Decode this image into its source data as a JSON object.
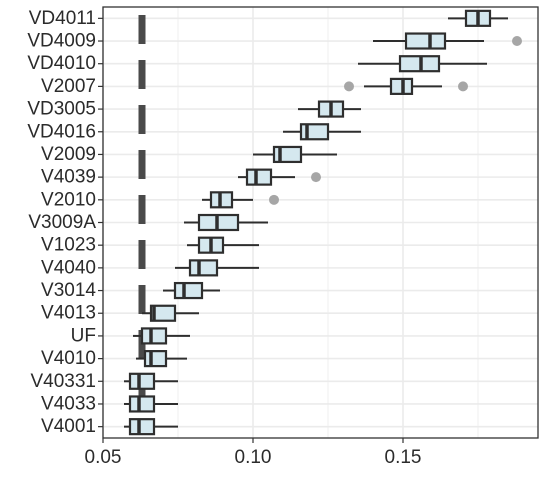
{
  "chart_data": {
    "type": "boxplot",
    "orientation": "horizontal",
    "title": "",
    "xlabel": "",
    "ylabel": "",
    "xlim": [
      0.05,
      0.195
    ],
    "x_ticks": [
      0.05,
      0.1,
      0.15
    ],
    "x_tick_labels": [
      "0.05",
      "0.10",
      "0.15"
    ],
    "grid": true,
    "reference_line": {
      "x": 0.063,
      "style": "dashed"
    },
    "colors": {
      "box_fill": "#d5e8ef",
      "box_stroke": "#2e2e2e",
      "outlier": "#a6a6a6",
      "grid": "#ebebeb",
      "reference_line": "#4a4a4a"
    },
    "categories": [
      "VD4011",
      "VD4009",
      "VD4010",
      "V2007",
      "VD3005",
      "VD4016",
      "V2009",
      "V4039",
      "V2010",
      "V3009A",
      "V1023",
      "V4040",
      "V3014",
      "V4013",
      "UF",
      "V4010",
      "V40331",
      "V4033",
      "V4001"
    ],
    "boxes": [
      {
        "category": "VD4011",
        "min": 0.165,
        "q1": 0.171,
        "median": 0.175,
        "q3": 0.179,
        "max": 0.185,
        "outliers": []
      },
      {
        "category": "VD4009",
        "min": 0.14,
        "q1": 0.151,
        "median": 0.159,
        "q3": 0.164,
        "max": 0.177,
        "outliers": [
          0.188
        ]
      },
      {
        "category": "VD4010",
        "min": 0.135,
        "q1": 0.149,
        "median": 0.156,
        "q3": 0.162,
        "max": 0.178,
        "outliers": []
      },
      {
        "category": "V2007",
        "min": 0.137,
        "q1": 0.146,
        "median": 0.15,
        "q3": 0.153,
        "max": 0.163,
        "outliers": [
          0.132,
          0.17
        ]
      },
      {
        "category": "VD3005",
        "min": 0.115,
        "q1": 0.122,
        "median": 0.126,
        "q3": 0.13,
        "max": 0.136,
        "outliers": []
      },
      {
        "category": "VD4016",
        "min": 0.11,
        "q1": 0.116,
        "median": 0.118,
        "q3": 0.125,
        "max": 0.136,
        "outliers": []
      },
      {
        "category": "V2009",
        "min": 0.1,
        "q1": 0.107,
        "median": 0.109,
        "q3": 0.116,
        "max": 0.128,
        "outliers": []
      },
      {
        "category": "V4039",
        "min": 0.095,
        "q1": 0.098,
        "median": 0.101,
        "q3": 0.106,
        "max": 0.114,
        "outliers": [
          0.121
        ]
      },
      {
        "category": "V2010",
        "min": 0.083,
        "q1": 0.086,
        "median": 0.089,
        "q3": 0.093,
        "max": 0.1,
        "outliers": [
          0.107
        ]
      },
      {
        "category": "V3009A",
        "min": 0.077,
        "q1": 0.082,
        "median": 0.088,
        "q3": 0.095,
        "max": 0.105,
        "outliers": []
      },
      {
        "category": "V1023",
        "min": 0.078,
        "q1": 0.082,
        "median": 0.086,
        "q3": 0.09,
        "max": 0.102,
        "outliers": []
      },
      {
        "category": "V4040",
        "min": 0.074,
        "q1": 0.079,
        "median": 0.082,
        "q3": 0.088,
        "max": 0.102,
        "outliers": []
      },
      {
        "category": "V3014",
        "min": 0.07,
        "q1": 0.074,
        "median": 0.077,
        "q3": 0.083,
        "max": 0.089,
        "outliers": []
      },
      {
        "category": "V4013",
        "min": 0.063,
        "q1": 0.066,
        "median": 0.067,
        "q3": 0.074,
        "max": 0.082,
        "outliers": []
      },
      {
        "category": "UF",
        "min": 0.06,
        "q1": 0.063,
        "median": 0.066,
        "q3": 0.071,
        "max": 0.079,
        "outliers": []
      },
      {
        "category": "V4010",
        "min": 0.061,
        "q1": 0.064,
        "median": 0.066,
        "q3": 0.071,
        "max": 0.078,
        "outliers": []
      },
      {
        "category": "V40331",
        "min": 0.057,
        "q1": 0.059,
        "median": 0.062,
        "q3": 0.067,
        "max": 0.075,
        "outliers": []
      },
      {
        "category": "V4033",
        "min": 0.057,
        "q1": 0.059,
        "median": 0.062,
        "q3": 0.067,
        "max": 0.075,
        "outliers": []
      },
      {
        "category": "V4001",
        "min": 0.057,
        "q1": 0.059,
        "median": 0.062,
        "q3": 0.067,
        "max": 0.075,
        "outliers": []
      }
    ]
  }
}
